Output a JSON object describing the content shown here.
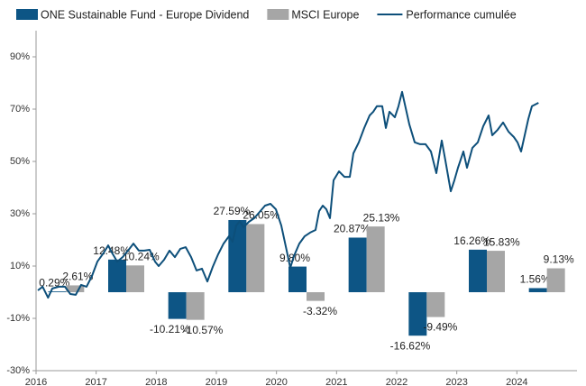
{
  "chart_data": {
    "type": "bar",
    "x": [
      2016,
      2017,
      2018,
      2019,
      2020,
      2021,
      2022,
      2023,
      2024
    ],
    "series": [
      {
        "name": "ONE Sustainable Fund - Europe Dividend",
        "color": "#0d5585",
        "values": [
          0.29,
          12.48,
          -10.21,
          27.59,
          9.8,
          20.87,
          -16.62,
          16.26,
          1.56
        ],
        "value_labels": [
          "0.29%",
          "12.48%",
          "-10.21%",
          "27.59%",
          "9.80%",
          "20.87%",
          "-16.62%",
          "16.26%",
          "1.56%"
        ]
      },
      {
        "name": "MSCI Europe",
        "color": "#a6a6a6",
        "values": [
          2.61,
          10.24,
          -10.57,
          26.05,
          -3.32,
          25.13,
          -9.49,
          15.83,
          9.13
        ],
        "value_labels": [
          "2.61%",
          "10.24%",
          "-10.57%",
          "26.05%",
          "-3.32%",
          "25.13%",
          "-9.49%",
          "15.83%",
          "9.13%"
        ]
      },
      {
        "name": "Performance cumulée",
        "type": "line",
        "color": "#0d4f7a",
        "x": [
          2016.03,
          2016.11,
          2016.2,
          2016.27,
          2016.38,
          2016.48,
          2016.57,
          2016.66,
          2016.75,
          2016.84,
          2016.93,
          2017.02,
          2017.13,
          2017.2,
          2017.26,
          2017.35,
          2017.44,
          2017.53,
          2017.62,
          2017.71,
          2017.8,
          2017.89,
          2017.98,
          2018.04,
          2018.13,
          2018.22,
          2018.31,
          2018.4,
          2018.49,
          2018.58,
          2018.67,
          2018.76,
          2018.85,
          2018.94,
          2019.03,
          2019.12,
          2019.21,
          2019.27,
          2019.33,
          2019.39,
          2019.45,
          2019.54,
          2019.63,
          2019.72,
          2019.81,
          2019.9,
          2019.99,
          2020.08,
          2020.17,
          2020.23,
          2020.29,
          2020.38,
          2020.47,
          2020.56,
          2020.65,
          2020.71,
          2020.77,
          2020.83,
          2020.89,
          2020.95,
          2021.04,
          2021.13,
          2021.22,
          2021.28,
          2021.37,
          2021.46,
          2021.55,
          2021.61,
          2021.67,
          2021.76,
          2021.82,
          2021.88,
          2021.97,
          2022.03,
          2022.09,
          2022.15,
          2022.21,
          2022.3,
          2022.39,
          2022.48,
          2022.57,
          2022.66,
          2022.75,
          2022.81,
          2022.9,
          2022.96,
          2023.02,
          2023.11,
          2023.17,
          2023.26,
          2023.35,
          2023.44,
          2023.53,
          2023.59,
          2023.68,
          2023.77,
          2023.86,
          2023.95,
          2024.01,
          2024.07,
          2024.13,
          2024.19,
          2024.25,
          2024.36
        ],
        "values": [
          0.7,
          2.1,
          -2.1,
          1.4,
          2.1,
          2.1,
          -0.7,
          -1.0,
          2.8,
          2.1,
          6.2,
          11.7,
          15.2,
          17.9,
          15.2,
          11.7,
          13.4,
          15.9,
          18.6,
          15.9,
          15.9,
          16.2,
          11.7,
          10.0,
          12.4,
          15.9,
          13.4,
          16.6,
          17.2,
          13.4,
          8.3,
          9.0,
          4.1,
          9.7,
          14.5,
          18.6,
          21.4,
          19.3,
          25.5,
          27.2,
          24.8,
          26.9,
          28.3,
          30.7,
          33.1,
          33.8,
          31.7,
          25.5,
          15.9,
          9.3,
          13.8,
          18.6,
          21.4,
          22.8,
          23.8,
          31.0,
          33.1,
          31.7,
          28.3,
          42.8,
          46.2,
          44.1,
          44.1,
          53.1,
          57.3,
          62.8,
          67.6,
          69.0,
          71.1,
          71.1,
          62.8,
          69.0,
          66.9,
          71.1,
          76.6,
          70.4,
          64.2,
          57.3,
          56.6,
          56.6,
          53.8,
          45.5,
          58.0,
          50.4,
          38.6,
          42.8,
          47.6,
          53.8,
          47.6,
          55.2,
          57.3,
          63.5,
          67.6,
          60.0,
          62.1,
          64.9,
          61.4,
          59.3,
          57.3,
          53.8,
          60.0,
          66.2,
          71.1,
          72.4
        ]
      }
    ],
    "xlim": [
      2016,
      2025
    ],
    "xticks": [
      2016,
      2017,
      2018,
      2019,
      2020,
      2021,
      2022,
      2023,
      2024
    ],
    "ylim": [
      -30,
      100
    ],
    "yticks": [
      {
        "value": -30,
        "label": "-30%"
      },
      {
        "value": -10,
        "label": "-10%"
      },
      {
        "value": 10,
        "label": "10%"
      },
      {
        "value": 30,
        "label": "30%"
      },
      {
        "value": 50,
        "label": "50%"
      },
      {
        "value": 70,
        "label": "70%"
      },
      {
        "value": 90,
        "label": "90%"
      }
    ],
    "grid": false
  }
}
